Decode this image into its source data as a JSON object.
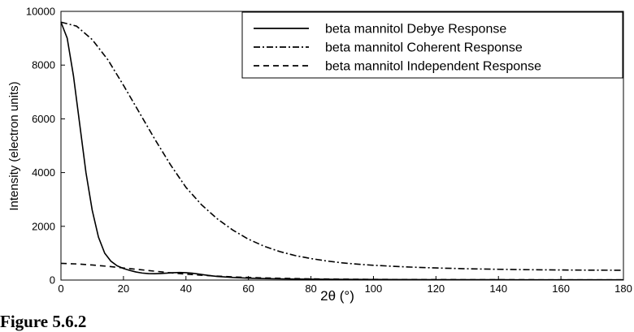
{
  "chart_data": {
    "type": "line",
    "title": "",
    "xlabel": "2θ (°)",
    "ylabel": "Intensity (electron units)",
    "xlim": [
      0,
      180
    ],
    "ylim": [
      0,
      10000
    ],
    "x_ticks": [
      0,
      20,
      40,
      60,
      80,
      100,
      120,
      140,
      160,
      180
    ],
    "y_ticks": [
      0,
      2000,
      4000,
      6000,
      8000,
      10000
    ],
    "grid": false,
    "legend_position": "top-right",
    "series": [
      {
        "name": "beta mannitol Debye Response",
        "style": "solid",
        "color": "#000000",
        "x": [
          0,
          2,
          4,
          6,
          8,
          10,
          12,
          14,
          16,
          18,
          20,
          22,
          24,
          26,
          28,
          30,
          32,
          34,
          36,
          38,
          40,
          42,
          44,
          46,
          48,
          50,
          55,
          60,
          65,
          70,
          75,
          80,
          90,
          100,
          110,
          120,
          140,
          160,
          180
        ],
        "y": [
          9600,
          9000,
          7600,
          5800,
          4000,
          2600,
          1600,
          1000,
          700,
          530,
          430,
          360,
          300,
          260,
          240,
          235,
          245,
          260,
          275,
          280,
          275,
          255,
          225,
          190,
          160,
          135,
          95,
          70,
          55,
          45,
          38,
          32,
          25,
          20,
          17,
          15,
          12,
          10,
          9
        ]
      },
      {
        "name": "beta mannitol Coherent Response",
        "style": "dash-dot",
        "color": "#000000",
        "x": [
          0,
          5,
          10,
          15,
          20,
          25,
          30,
          35,
          40,
          45,
          50,
          55,
          60,
          65,
          70,
          75,
          80,
          85,
          90,
          95,
          100,
          110,
          120,
          130,
          140,
          150,
          160,
          170,
          180
        ],
        "y": [
          9600,
          9450,
          8950,
          8200,
          7250,
          6250,
          5250,
          4300,
          3450,
          2800,
          2280,
          1860,
          1520,
          1260,
          1060,
          910,
          800,
          710,
          640,
          590,
          550,
          490,
          450,
          420,
          400,
          385,
          375,
          368,
          365
        ]
      },
      {
        "name": "beta mannitol Independent Response",
        "style": "dashed",
        "color": "#000000",
        "x": [
          0,
          5,
          10,
          15,
          20,
          25,
          30,
          35,
          40,
          45,
          50,
          55,
          60,
          70,
          80,
          90,
          100,
          120,
          140,
          160,
          180
        ],
        "y": [
          620,
          600,
          560,
          510,
          450,
          390,
          330,
          270,
          220,
          180,
          145,
          118,
          95,
          65,
          45,
          33,
          25,
          17,
          13,
          11,
          10
        ]
      }
    ]
  },
  "caption": "Figure 5.6.2"
}
